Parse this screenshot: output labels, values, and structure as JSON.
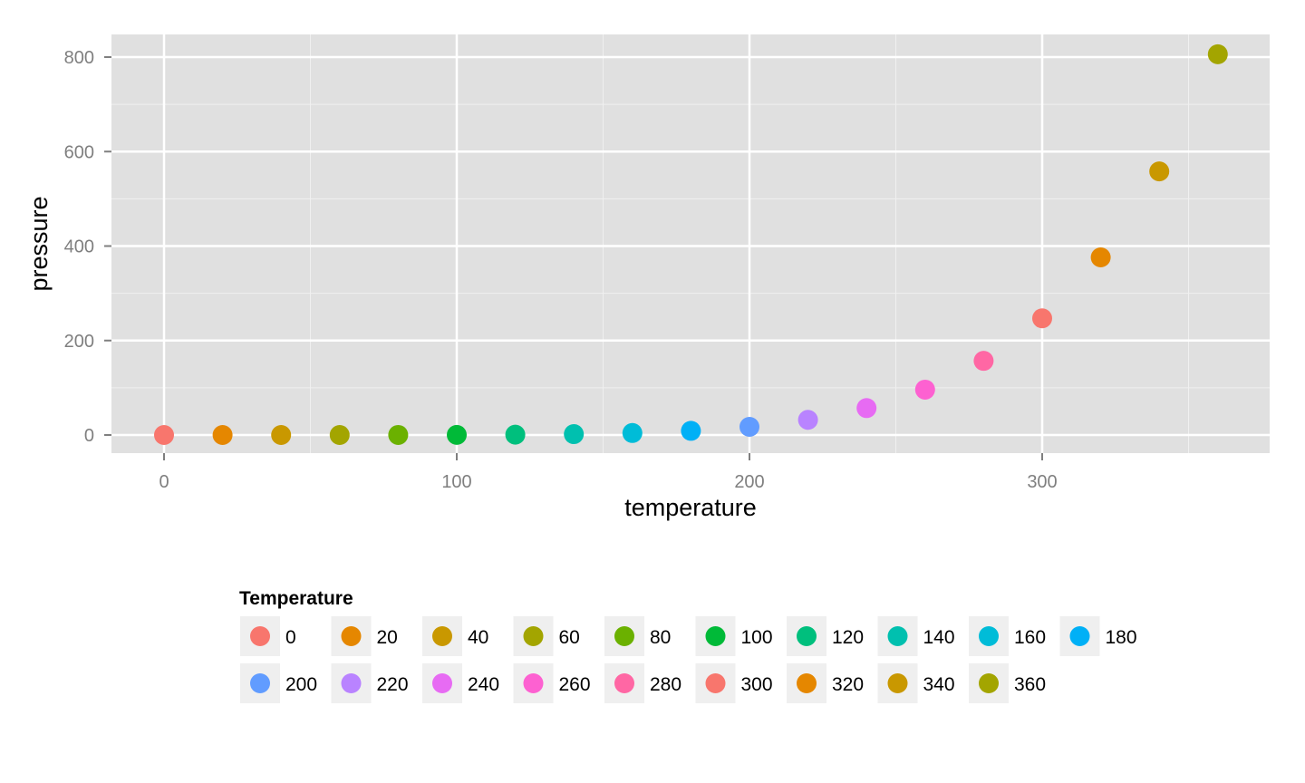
{
  "chart_data": {
    "type": "scatter",
    "title": "",
    "xlabel": "temperature",
    "ylabel": "pressure",
    "xlim": [
      -18,
      378
    ],
    "ylim": [
      -40,
      848
    ],
    "xticks": [
      0,
      100,
      200,
      300
    ],
    "yticks": [
      0,
      200,
      400,
      600,
      800
    ],
    "grid": true,
    "legend": {
      "title": "Temperature",
      "placement": "bottom"
    },
    "points": [
      {
        "x": 0,
        "y": 0.0002,
        "label": "0",
        "color": "#F8766D"
      },
      {
        "x": 20,
        "y": 0.0012,
        "label": "20",
        "color": "#E58700"
      },
      {
        "x": 40,
        "y": 0.006,
        "label": "40",
        "color": "#C99800"
      },
      {
        "x": 60,
        "y": 0.03,
        "label": "60",
        "color": "#A3A500"
      },
      {
        "x": 80,
        "y": 0.09,
        "label": "80",
        "color": "#6BB100"
      },
      {
        "x": 100,
        "y": 0.27,
        "label": "100",
        "color": "#00BA38"
      },
      {
        "x": 120,
        "y": 0.75,
        "label": "120",
        "color": "#00BF7D"
      },
      {
        "x": 140,
        "y": 1.85,
        "label": "140",
        "color": "#00C0AF"
      },
      {
        "x": 160,
        "y": 4.2,
        "label": "160",
        "color": "#00BCD8"
      },
      {
        "x": 180,
        "y": 8.8,
        "label": "180",
        "color": "#00B0F6"
      },
      {
        "x": 200,
        "y": 17.3,
        "label": "200",
        "color": "#619CFF"
      },
      {
        "x": 220,
        "y": 32.1,
        "label": "220",
        "color": "#B983FF"
      },
      {
        "x": 240,
        "y": 57.0,
        "label": "240",
        "color": "#E76BF3"
      },
      {
        "x": 260,
        "y": 96.0,
        "label": "260",
        "color": "#FD61D1"
      },
      {
        "x": 280,
        "y": 157.0,
        "label": "280",
        "color": "#FF67A4"
      },
      {
        "x": 300,
        "y": 247.0,
        "label": "300",
        "color": "#F8766D"
      },
      {
        "x": 320,
        "y": 376.0,
        "label": "320",
        "color": "#E58700"
      },
      {
        "x": 340,
        "y": 558.0,
        "label": "340",
        "color": "#C99800"
      },
      {
        "x": 360,
        "y": 806.0,
        "label": "360",
        "color": "#A3A500"
      }
    ]
  }
}
